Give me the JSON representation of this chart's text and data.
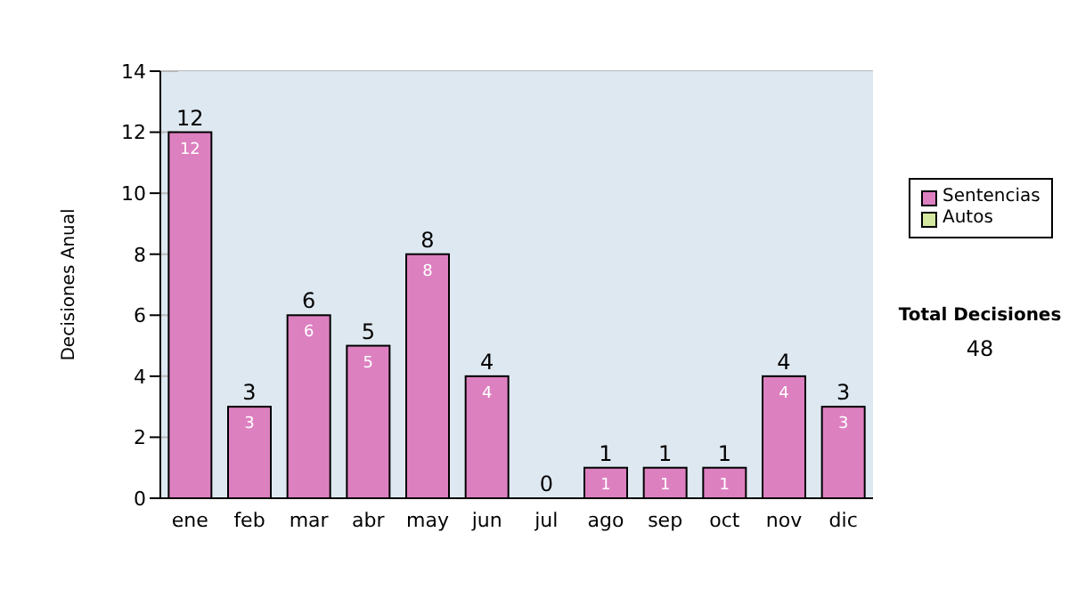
{
  "chart_data": {
    "type": "bar",
    "stacked": true,
    "ylabel": "Decisiones Anual",
    "categories": [
      "ene",
      "feb",
      "mar",
      "abr",
      "may",
      "jun",
      "jul",
      "ago",
      "sep",
      "oct",
      "nov",
      "dic"
    ],
    "series": [
      {
        "name": "Sentencias",
        "color": "#dd80c0",
        "values": [
          12,
          3,
          6,
          5,
          8,
          4,
          0,
          1,
          1,
          1,
          4,
          3
        ],
        "value_labels": [
          "12",
          "3",
          "6",
          "5",
          "8",
          "4",
          null,
          "1",
          "1",
          "1",
          "4",
          "3"
        ]
      },
      {
        "name": "Autos",
        "color": "#d4e8a0",
        "values": [
          null,
          null,
          null,
          null,
          null,
          null,
          null,
          null,
          null,
          null,
          null,
          null
        ]
      }
    ],
    "totals": [
      "12",
      "3",
      "6",
      "5",
      "8",
      "4",
      "0",
      "1",
      "1",
      "1",
      "4",
      "3"
    ],
    "ylim": [
      0,
      14
    ],
    "yticks": [
      0,
      2,
      4,
      6,
      8,
      10,
      12,
      14
    ],
    "grid": "y",
    "legend": "right",
    "annotations": [
      "Total Decisiones",
      "48"
    ]
  }
}
